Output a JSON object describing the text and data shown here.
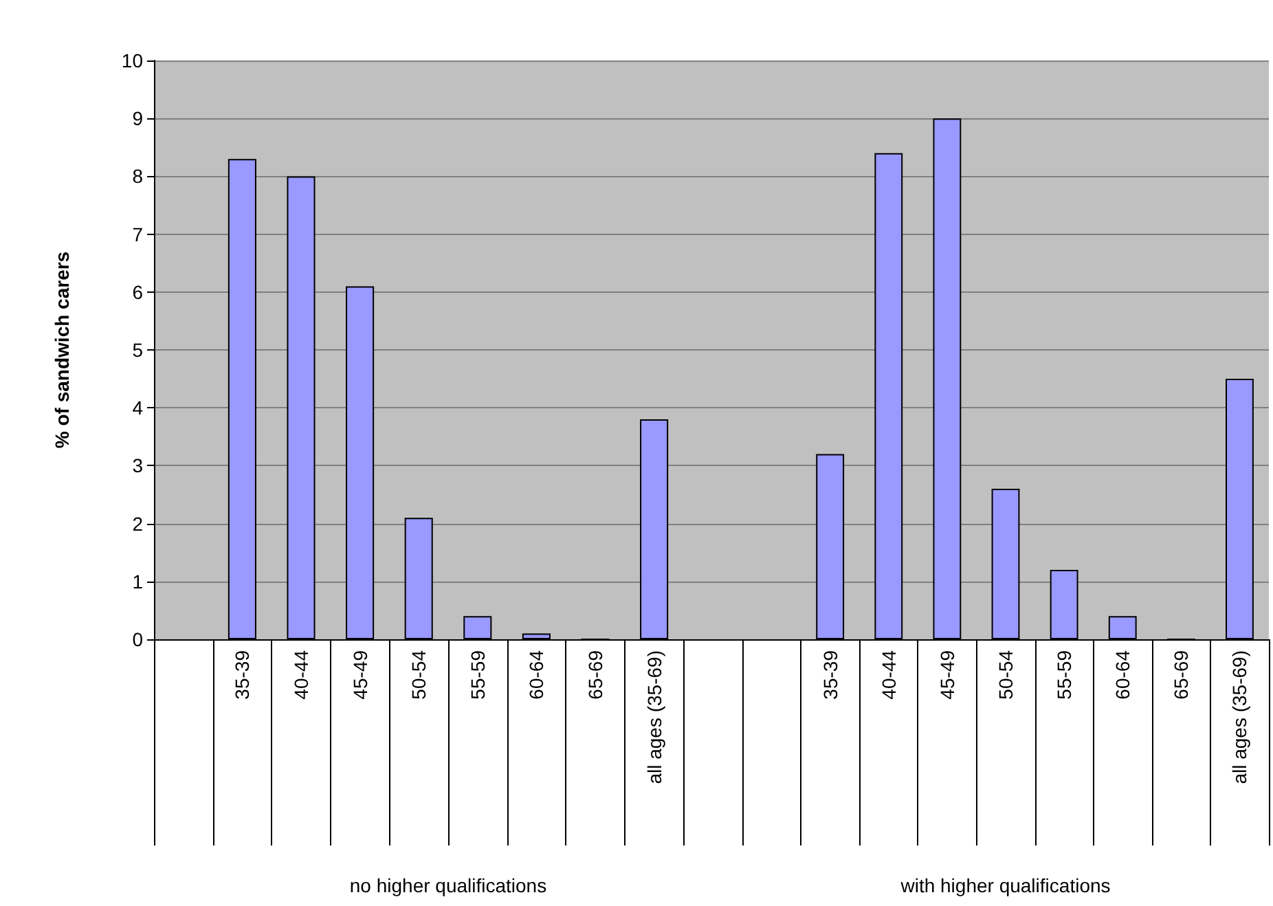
{
  "chart_data": [
    {
      "type": "bar",
      "ylabel": "% of sandwich carers",
      "xlabel": "no higher qualifications",
      "categories": [
        null,
        "35-39",
        "40-44",
        "45-49",
        "50-54",
        "55-59",
        "60-64",
        "65-69",
        "all ages (35-69)",
        null
      ],
      "values": [
        null,
        8.3,
        8.0,
        6.1,
        2.1,
        0.4,
        0.1,
        0,
        3.8,
        null
      ],
      "color": "#9999ff",
      "ylim": [
        0,
        10
      ],
      "yticks": [
        0,
        1,
        2,
        3,
        4,
        5,
        6,
        7,
        8,
        9,
        10
      ],
      "grid": "y"
    },
    {
      "type": "bar",
      "xlabel": "with higher qualifications",
      "categories": [
        null,
        "35-39",
        "40-44",
        "45-49",
        "50-54",
        "55-59",
        "60-64",
        "65-69",
        "all ages (35-69)"
      ],
      "values": [
        null,
        3.2,
        8.4,
        9.0,
        2.6,
        1.2,
        0.4,
        0,
        4.5
      ],
      "color": "#9999ff",
      "ylim": [
        0,
        10
      ],
      "yticks": [
        0,
        1,
        2,
        3,
        4,
        5,
        6,
        7,
        8,
        9,
        10
      ],
      "grid": "y",
      "tick_labels": "x"
    }
  ]
}
